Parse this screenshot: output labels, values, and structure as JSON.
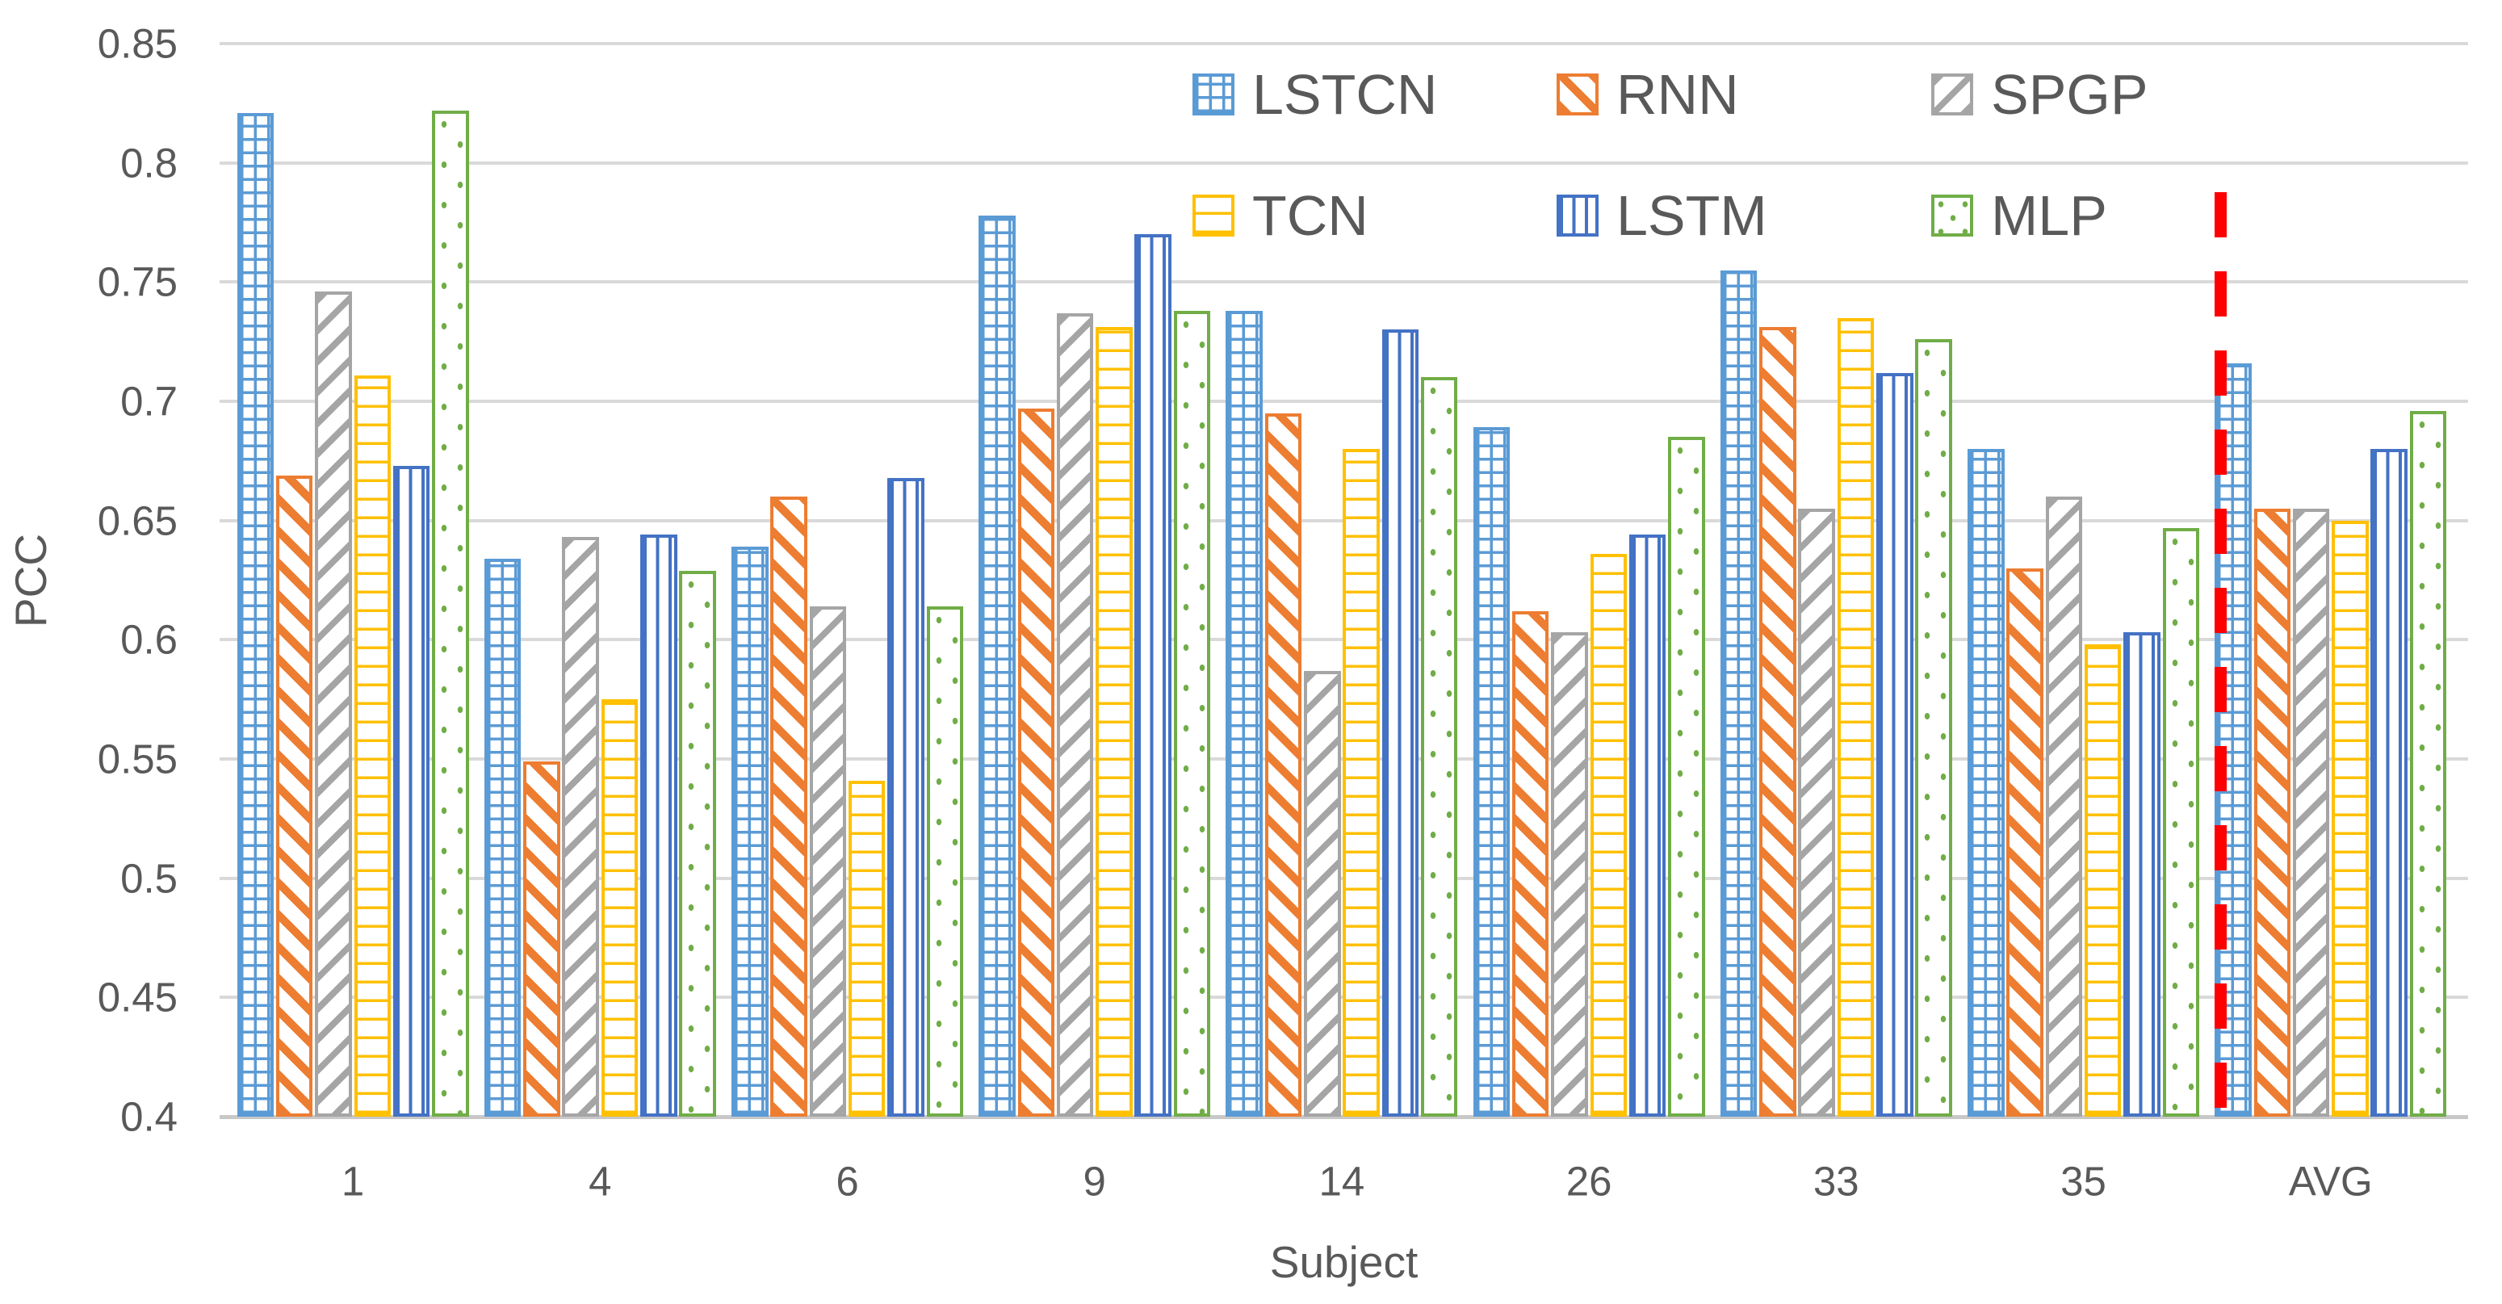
{
  "chart_data": {
    "type": "bar",
    "title": "",
    "xlabel": "Subject",
    "ylabel": "PCC",
    "categories": [
      "1",
      "4",
      "6",
      "9",
      "14",
      "26",
      "33",
      "35",
      "AVG"
    ],
    "series": [
      {
        "name": "LSTCN",
        "color": "#5B9BD5",
        "pattern": "grid",
        "values": [
          0.821,
          0.634,
          0.639,
          0.778,
          0.738,
          0.689,
          0.755,
          0.68,
          0.716
        ]
      },
      {
        "name": "RNN",
        "color": "#ED7D31",
        "pattern": "diagonal-down",
        "values": [
          0.669,
          0.549,
          0.66,
          0.697,
          0.695,
          0.612,
          0.731,
          0.63,
          0.655
        ]
      },
      {
        "name": "SPGP",
        "color": "#A5A5A5",
        "pattern": "diagonal-up",
        "values": [
          0.746,
          0.643,
          0.614,
          0.737,
          0.587,
          0.603,
          0.655,
          0.66,
          0.655
        ]
      },
      {
        "name": "TCN",
        "color": "#FFC000",
        "pattern": "horizontal",
        "values": [
          0.711,
          0.575,
          0.541,
          0.731,
          0.68,
          0.636,
          0.735,
          0.598,
          0.65
        ]
      },
      {
        "name": "LSTM",
        "color": "#4472C4",
        "pattern": "vertical",
        "values": [
          0.673,
          0.644,
          0.668,
          0.77,
          0.73,
          0.644,
          0.712,
          0.603,
          0.68
        ]
      },
      {
        "name": "MLP",
        "color": "#70AD47",
        "pattern": "dots",
        "values": [
          0.822,
          0.629,
          0.614,
          0.738,
          0.71,
          0.685,
          0.726,
          0.647,
          0.696
        ]
      }
    ],
    "ylim": [
      0.4,
      0.85
    ],
    "ytick_step": 0.05,
    "yticks": [
      "0.85",
      "0.8",
      "0.75",
      "0.7",
      "0.65",
      "0.6",
      "0.55",
      "0.5",
      "0.45",
      "0.4"
    ],
    "grid": true,
    "legend_position": "top-inside-two-rows",
    "annotations": {
      "separator": {
        "type": "vertical-dashed-line",
        "color": "#FF0000",
        "between": [
          "35",
          "AVG"
        ]
      }
    }
  },
  "style_colors": {
    "grid": "#D9D9D9",
    "axis_line": "#C8C8C8",
    "text": "#595959",
    "separator": "#FF0000",
    "background": "#FFFFFF"
  }
}
